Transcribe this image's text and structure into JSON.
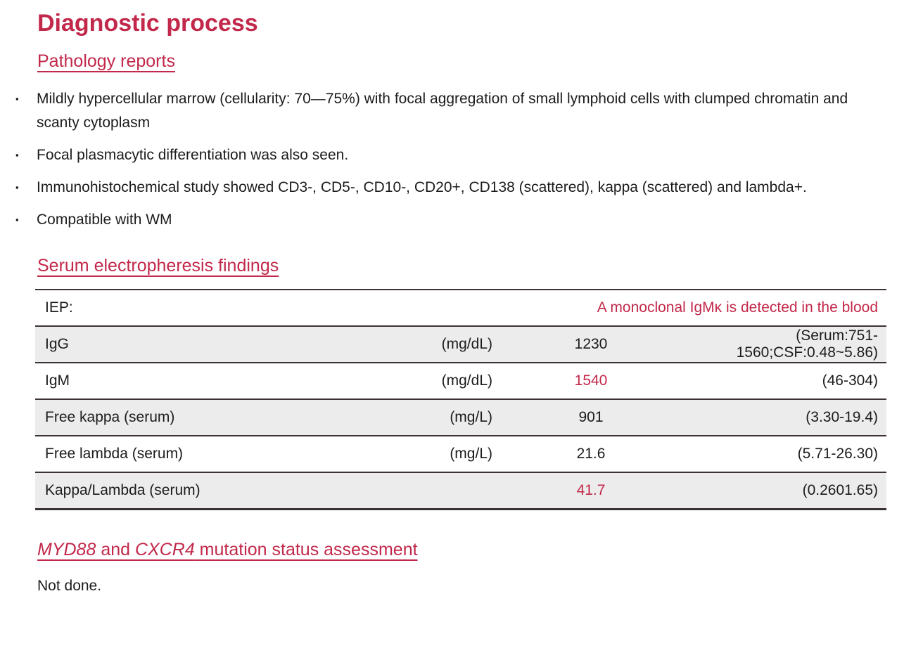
{
  "colors": {
    "accent": "#c2284a",
    "text": "#1c1c1c",
    "table_stripe": "#ececec",
    "table_border": "#3b3236"
  },
  "icons": {
    "bullet": "▪"
  },
  "title": "Diagnostic process",
  "pathology": {
    "heading": "Pathology reports",
    "bullets": [
      "Mildly hypercellular marrow (cellularity: 70—75%) with focal aggregation of small lymphoid cells with clumped chromatin and scanty cytoplasm",
      "Focal plasmacytic differentiation was also seen.",
      "Immunohistochemical study showed CD3-, CD5-, CD10-, CD20+, CD138 (scattered), kappa (scattered) and lambda+.",
      "Compatible with WM"
    ]
  },
  "serum": {
    "heading": "Serum electropheresis findings",
    "table": {
      "rows": [
        {
          "label": "IEP:",
          "unit": "",
          "value": "",
          "ref": "A monoclonal IgMκ is detected in the blood"
        },
        {
          "label": "IgG",
          "unit": "(mg/dL)",
          "value": "1230",
          "ref": "(Serum:751-1560;CSF:0.48~5.86)"
        },
        {
          "label": "IgM",
          "unit": "(mg/dL)",
          "value": "1540",
          "ref": "(46-304)"
        },
        {
          "label": "Free kappa (serum)",
          "unit": "(mg/L)",
          "value": "901",
          "ref": "(3.30-19.4)"
        },
        {
          "label": "Free lambda (serum)",
          "unit": "(mg/L)",
          "value": "21.6",
          "ref": "(5.71-26.30)"
        },
        {
          "label": "Kappa/Lambda (serum)",
          "unit": "",
          "value": "41.7",
          "ref": "(0.2601.65)"
        }
      ]
    }
  },
  "mutation": {
    "heading_gene1": "MYD88",
    "heading_mid": " and ",
    "heading_gene2": "CXCR4",
    "heading_rest": " mutation status assessment",
    "body": "Not done."
  }
}
